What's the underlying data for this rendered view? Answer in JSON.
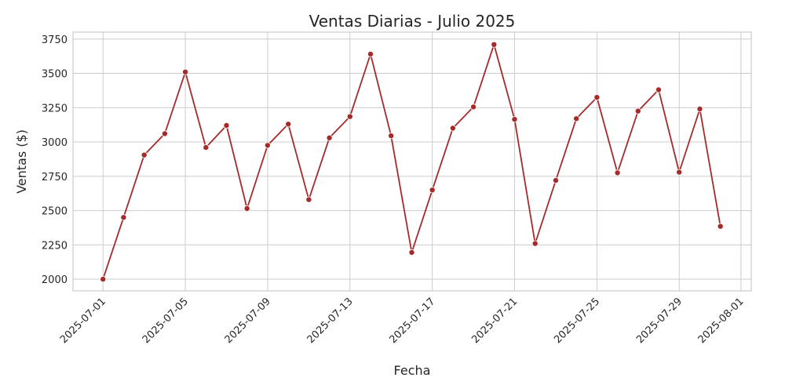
{
  "chart_data": {
    "type": "line",
    "title": "Ventas Diarias - Julio 2025",
    "xlabel": "Fecha",
    "ylabel": "Ventas ($)",
    "x_ticks": [
      "2025-07-01",
      "2025-07-05",
      "2025-07-09",
      "2025-07-13",
      "2025-07-17",
      "2025-07-21",
      "2025-07-25",
      "2025-07-29",
      "2025-08-01"
    ],
    "y_ticks": [
      "2000",
      "2250",
      "2500",
      "2750",
      "3000",
      "3250",
      "3500",
      "3750"
    ],
    "xlim": [
      "2025-06-29T13:00",
      "2025-08-01T12:00"
    ],
    "ylim": [
      1915,
      3800
    ],
    "grid": true,
    "line_color": "#a52a2a",
    "marker": "circle",
    "series": [
      {
        "x": [
          "2025-07-01",
          "2025-07-02",
          "2025-07-03",
          "2025-07-04",
          "2025-07-05",
          "2025-07-06",
          "2025-07-07",
          "2025-07-08",
          "2025-07-09",
          "2025-07-10",
          "2025-07-11",
          "2025-07-12",
          "2025-07-13",
          "2025-07-14",
          "2025-07-15",
          "2025-07-16",
          "2025-07-17",
          "2025-07-18",
          "2025-07-19",
          "2025-07-20",
          "2025-07-21",
          "2025-07-22",
          "2025-07-23",
          "2025-07-24",
          "2025-07-25",
          "2025-07-26",
          "2025-07-27",
          "2025-07-28",
          "2025-07-29",
          "2025-07-30",
          "2025-07-31"
        ],
        "values": [
          2000,
          2450,
          2905,
          3060,
          3510,
          2960,
          3120,
          2515,
          2975,
          3130,
          2580,
          3030,
          3185,
          3640,
          3045,
          2195,
          2650,
          3100,
          3255,
          3710,
          3165,
          2260,
          2720,
          3170,
          3325,
          2775,
          3225,
          3380,
          2780,
          3240,
          2385
        ]
      }
    ]
  }
}
